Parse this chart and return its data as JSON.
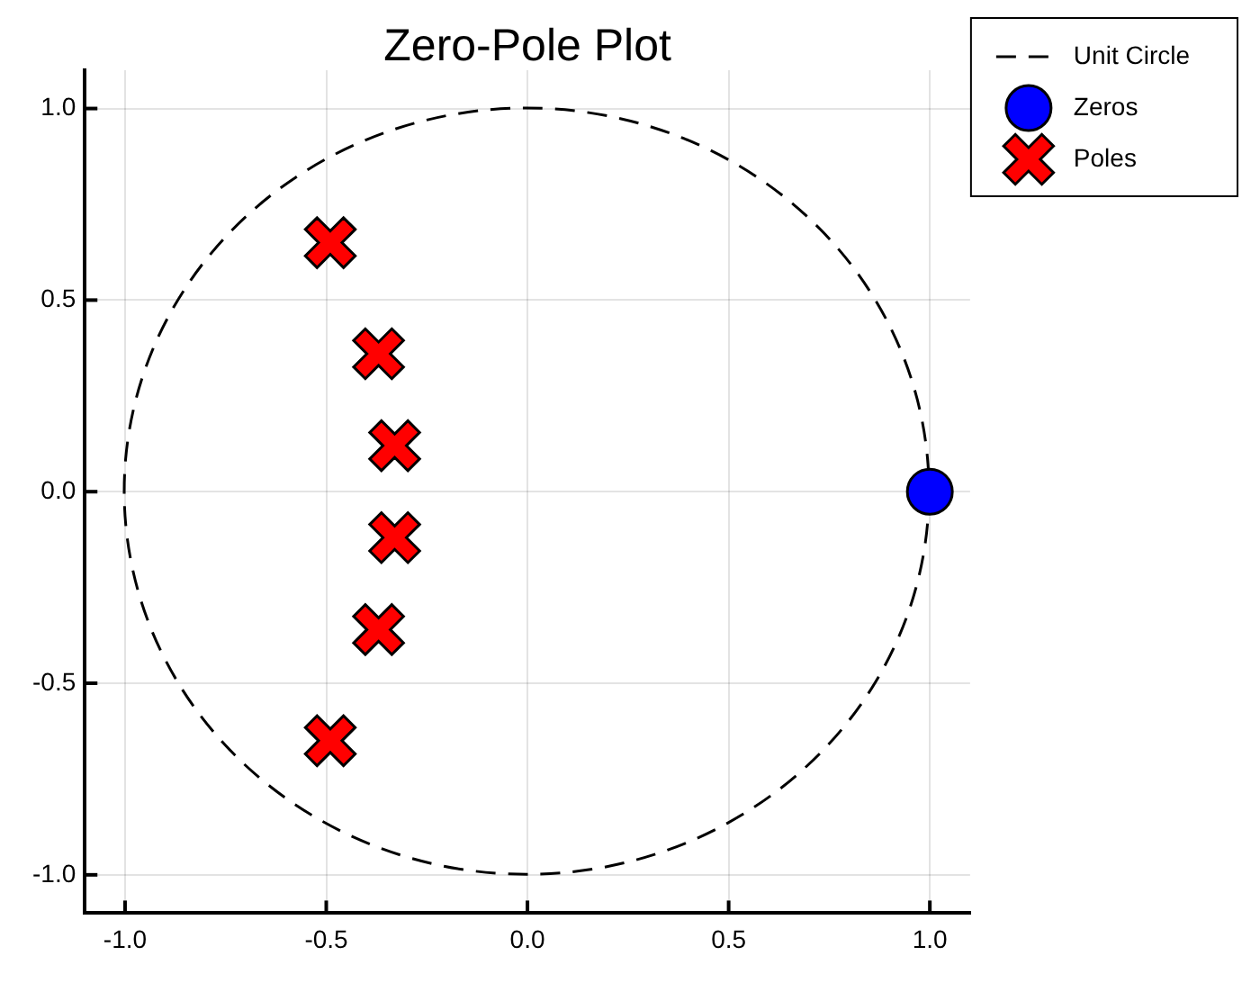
{
  "chart_data": {
    "type": "scatter",
    "title": "Zero-Pole Plot",
    "series": [
      {
        "name": "Zeros",
        "type": "scatter",
        "color": "#0000ff",
        "marker": "circle",
        "x": [
          1
        ],
        "values": [
          0
        ]
      },
      {
        "name": "Poles",
        "type": "scatter",
        "color": "#ff0000",
        "marker": "cross",
        "x": [
          -0.49,
          -0.37,
          -0.33,
          -0.33,
          -0.37,
          -0.49
        ],
        "values": [
          0.65,
          0.36,
          0.12,
          -0.12,
          -0.36,
          -0.65
        ]
      }
    ],
    "xlim": [
      -1.1,
      1.1
    ],
    "ylim": [
      -1.1,
      1.1
    ],
    "xticks": [
      {
        "value": -1,
        "label": "-1.0"
      },
      -0.5,
      {
        "value": 0,
        "label": "0.0"
      },
      0.5,
      {
        "value": 1,
        "label": "1.0"
      }
    ],
    "yticks": [
      {
        "value": -1,
        "label": "-1.0"
      },
      -0.5,
      {
        "value": 0,
        "label": "0.0"
      },
      0.5,
      {
        "value": 1,
        "label": "1.0"
      }
    ],
    "annotations": [
      "Unit Circle"
    ],
    "grid": true,
    "legend": "top right"
  }
}
